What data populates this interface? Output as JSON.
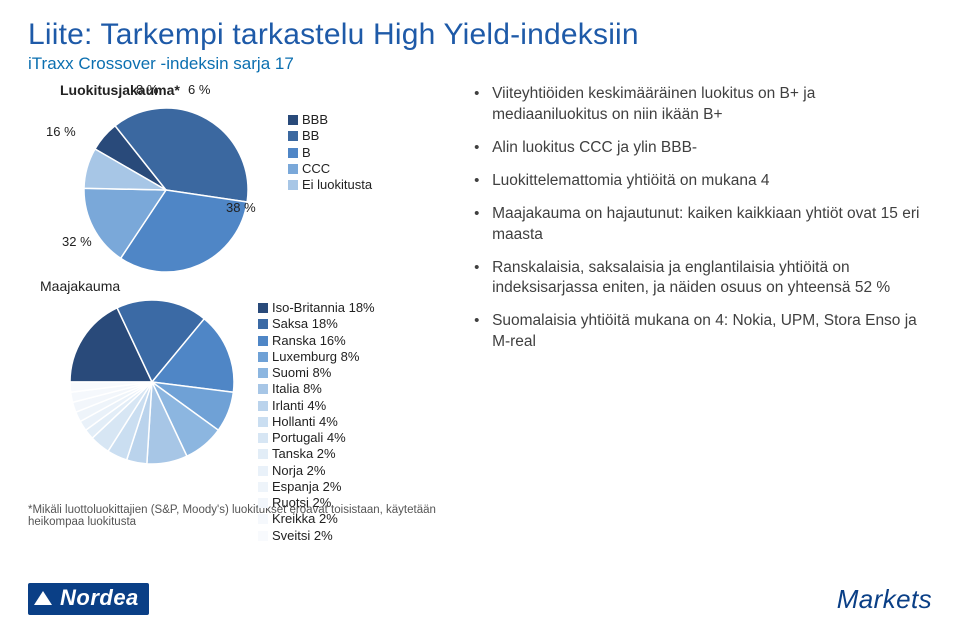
{
  "title": "Liite: Tarkempi tarkastelu High Yield-indeksiin",
  "subtitle": "iTraxx Crossover -indeksin sarja 17",
  "ratings_chart": {
    "title": "Luokitusjakauma*",
    "type": "pie",
    "slices": [
      {
        "label": "BBB",
        "value": 6,
        "color": "#294a7a",
        "pct_label": "6 %"
      },
      {
        "label": "BB",
        "value": 38,
        "color": "#3b68a0",
        "pct_label": "38 %"
      },
      {
        "label": "B",
        "value": 32,
        "color": "#4f86c6",
        "pct_label": "32 %"
      },
      {
        "label": "CCC",
        "value": 16,
        "color": "#7aa8d9",
        "pct_label": "16 %"
      },
      {
        "label": "Ei luokitusta",
        "value": 8,
        "color": "#a7c6e6",
        "pct_label": "8 %"
      }
    ],
    "legend_start_angle_deg": -60
  },
  "country_chart": {
    "title": "Maajakauma",
    "type": "pie",
    "slices": [
      {
        "label": "Iso-Britannia 18%",
        "value": 18,
        "color": "#294a7a"
      },
      {
        "label": "Saksa 18%",
        "value": 18,
        "color": "#3b6aa5"
      },
      {
        "label": "Ranska 16%",
        "value": 16,
        "color": "#4f86c6"
      },
      {
        "label": "Luxemburg 8%",
        "value": 8,
        "color": "#6fa1d6"
      },
      {
        "label": "Suomi 8%",
        "value": 8,
        "color": "#8cb6e0"
      },
      {
        "label": "Italia 8%",
        "value": 8,
        "color": "#a7c6e6"
      },
      {
        "label": "Irlanti 4%",
        "value": 4,
        "color": "#bad3ec"
      },
      {
        "label": "Hollanti 4%",
        "value": 4,
        "color": "#cadef1"
      },
      {
        "label": "Portugali 4%",
        "value": 4,
        "color": "#d7e6f4"
      },
      {
        "label": "Tanska 2%",
        "value": 2,
        "color": "#e2edf7"
      },
      {
        "label": "Norja 2%",
        "value": 2,
        "color": "#e9f1f9"
      },
      {
        "label": "Espanja 2%",
        "value": 2,
        "color": "#eef4fa"
      },
      {
        "label": "Ruotsi 2%",
        "value": 2,
        "color": "#f2f6fb"
      },
      {
        "label": "Kreikka 2%",
        "value": 2,
        "color": "#f5f8fc"
      },
      {
        "label": "Sveitsi 2%",
        "value": 2,
        "color": "#f8fafd"
      }
    ],
    "legend_start_angle_deg": -90
  },
  "bullets": [
    "Viiteyhtiöiden keskimääräinen luokitus on B+ ja mediaaniluokitus on niin ikään B+",
    "Alin luokitus CCC ja ylin BBB-",
    "Luokittelemattomia yhtiöitä on mukana 4",
    "Maajakauma on hajautunut: kaiken kaikkiaan yhtiöt ovat 15 eri maasta",
    "Ranskalaisia, saksalaisia ja englantilaisia yhtiöitä on indeksisarjassa eniten, ja näiden osuus on yhteensä 52 %",
    "Suomalaisia yhtiöitä mukana on 4: Nokia, UPM, Stora Enso ja M-real"
  ],
  "footnote": "*Mikäli luottoluokittajien (S&P, Moody's) luokitukset eroavat toisistaan, käytetään heikompaa luokitusta",
  "footer": {
    "brand": "Nordea",
    "right": "Markets"
  }
}
